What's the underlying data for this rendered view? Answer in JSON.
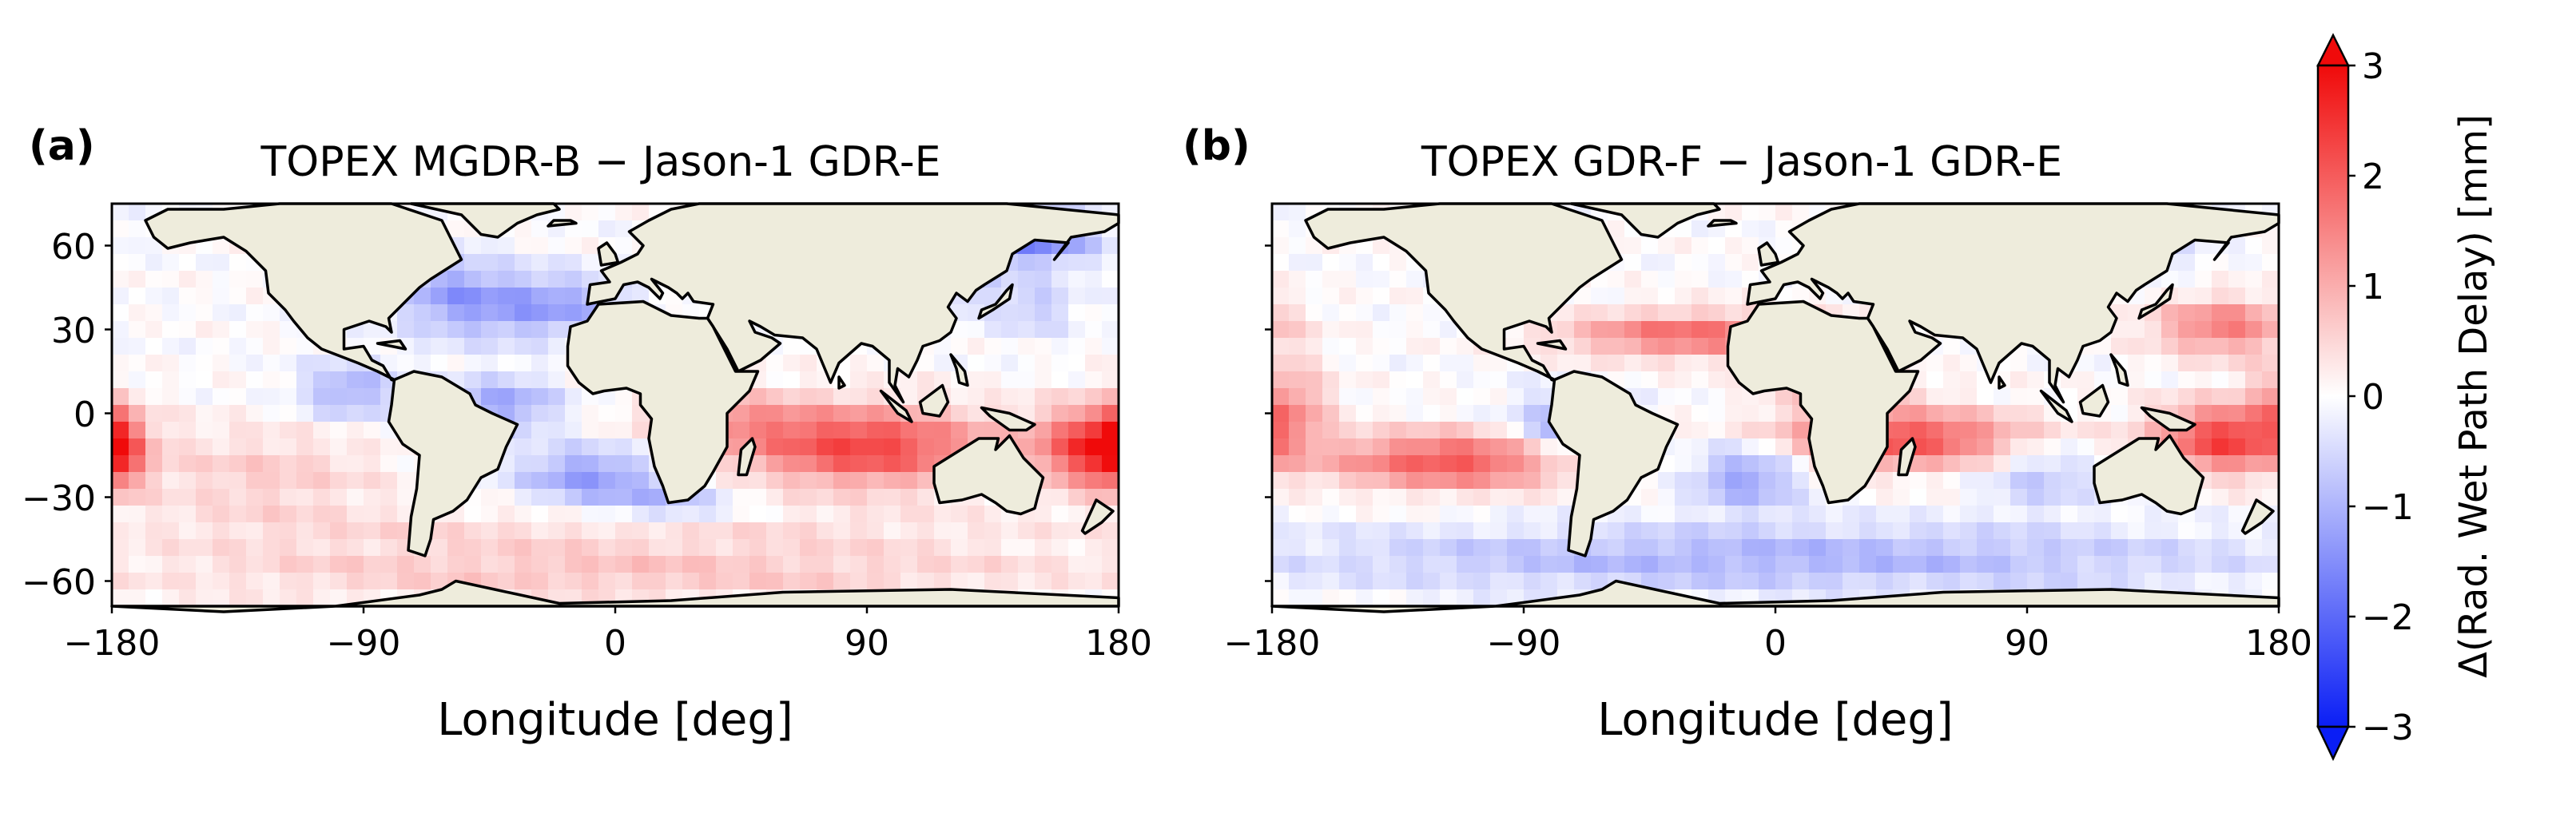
{
  "figure": {
    "colors": {
      "negative": "#0a1ef5",
      "neutral": "#ffffff",
      "positive": "#f00a0a",
      "land": "#eeecdc",
      "coast": "#000000"
    }
  },
  "panels": [
    {
      "label": "(a)",
      "title": "TOPEX MGDR-B − Jason-1 GDR-E",
      "xlabel": "Longitude [deg]",
      "xticks": [
        "−180",
        "−90",
        "0",
        "90",
        "180"
      ],
      "yticks": [
        "60",
        "30",
        "0",
        "−30",
        "−60"
      ],
      "show_yticklabels": true
    },
    {
      "label": "(b)",
      "title": "TOPEX GDR-F − Jason-1 GDR-E",
      "xlabel": "Longitude [deg]",
      "xticks": [
        "−180",
        "−90",
        "0",
        "90",
        "180"
      ],
      "yticks": [
        "60",
        "30",
        "0",
        "−30",
        "−60"
      ],
      "show_yticklabels": false
    }
  ],
  "colorbar": {
    "label": "Δ(Rad. Wet Path Delay) [mm]",
    "ticks": [
      "3",
      "2",
      "1",
      "0",
      "−1",
      "−2",
      "−3"
    ],
    "range": [
      -3,
      3
    ],
    "extend": "both"
  },
  "chart_data": [
    {
      "type": "heatmap",
      "title": "TOPEX MGDR-B − Jason-1 GDR-E",
      "xlabel": "Longitude [deg]",
      "ylabel": "",
      "xlim": [
        -180,
        180
      ],
      "ylim": [
        -72,
        72
      ],
      "clim": [
        -3,
        3
      ],
      "cell_deg": 6,
      "pattern": [
        {
          "lon": 90,
          "lat": -15,
          "dlon": 45,
          "dlat": 14,
          "value": 2.3
        },
        {
          "lon": 170,
          "lat": -15,
          "dlon": 20,
          "dlat": 14,
          "value": 2.2
        },
        {
          "lon": -180,
          "lat": -15,
          "dlon": 10,
          "dlat": 14,
          "value": 1.8
        },
        {
          "lon": 40,
          "lat": -5,
          "dlon": 30,
          "dlat": 10,
          "value": 1.0
        },
        {
          "lon": -25,
          "lat": 35,
          "dlon": 30,
          "dlat": 12,
          "value": -1.3
        },
        {
          "lon": -60,
          "lat": 40,
          "dlon": 20,
          "dlat": 15,
          "value": -1.0
        },
        {
          "lon": -40,
          "lat": 0,
          "dlon": 20,
          "dlat": 10,
          "value": -1.2
        },
        {
          "lon": -95,
          "lat": 5,
          "dlon": 18,
          "dlat": 10,
          "value": -1.1
        },
        {
          "lon": -10,
          "lat": -25,
          "dlon": 25,
          "dlat": 10,
          "value": -1.3
        },
        {
          "lon": 20,
          "lat": -35,
          "dlon": 25,
          "dlat": 8,
          "value": -0.8
        },
        {
          "lon": 120,
          "lat": 45,
          "dlon": 15,
          "dlat": 12,
          "value": -0.8
        },
        {
          "lon": 150,
          "lat": 35,
          "dlon": 15,
          "dlat": 10,
          "value": -0.7
        },
        {
          "lon": 0,
          "lat": -60,
          "dlon": 180,
          "dlat": 10,
          "value": 0.7
        },
        {
          "lon": 0,
          "lat": -45,
          "dlon": 180,
          "dlat": 8,
          "value": 0.4
        },
        {
          "lon": -125,
          "lat": -25,
          "dlon": 45,
          "dlat": 18,
          "value": 0.6
        },
        {
          "lon": 10,
          "lat": 20,
          "dlon": 30,
          "dlat": 10,
          "value": 0.3
        },
        {
          "lon": 120,
          "lat": 60,
          "dlon": 30,
          "dlat": 10,
          "value": -1.5
        },
        {
          "lon": 155,
          "lat": 60,
          "dlon": 20,
          "dlat": 10,
          "value": -1.2
        }
      ]
    },
    {
      "type": "heatmap",
      "title": "TOPEX GDR-F − Jason-1 GDR-E",
      "xlabel": "Longitude [deg]",
      "ylabel": "",
      "xlim": [
        -180,
        180
      ],
      "ylim": [
        -72,
        72
      ],
      "clim": [
        -3,
        3
      ],
      "cell_deg": 6,
      "pattern": [
        {
          "lon": 45,
          "lat": -12,
          "dlon": 45,
          "dlat": 10,
          "value": 2.2
        },
        {
          "lon": 160,
          "lat": -12,
          "dlon": 25,
          "dlat": 12,
          "value": 2.3
        },
        {
          "lon": -115,
          "lat": -20,
          "dlon": 45,
          "dlat": 10,
          "value": 2.1
        },
        {
          "lon": -30,
          "lat": 25,
          "dlon": 45,
          "dlat": 8,
          "value": 1.8
        },
        {
          "lon": 160,
          "lat": 28,
          "dlon": 25,
          "dlat": 10,
          "value": 1.6
        },
        {
          "lon": -175,
          "lat": 0,
          "dlon": 15,
          "dlat": 15,
          "value": 1.2
        },
        {
          "lon": 25,
          "lat": 5,
          "dlon": 25,
          "dlat": 8,
          "value": 0.8
        },
        {
          "lon": -75,
          "lat": -8,
          "dlon": 20,
          "dlat": 12,
          "value": -1.2
        },
        {
          "lon": -10,
          "lat": -25,
          "dlon": 20,
          "dlat": 12,
          "value": -1.3
        },
        {
          "lon": 0,
          "lat": -55,
          "dlon": 180,
          "dlat": 12,
          "value": -1.0
        },
        {
          "lon": 95,
          "lat": -25,
          "dlon": 20,
          "dlat": 12,
          "value": -0.8
        },
        {
          "lon": 120,
          "lat": 58,
          "dlon": 25,
          "dlat": 12,
          "value": -1.0
        }
      ]
    }
  ]
}
